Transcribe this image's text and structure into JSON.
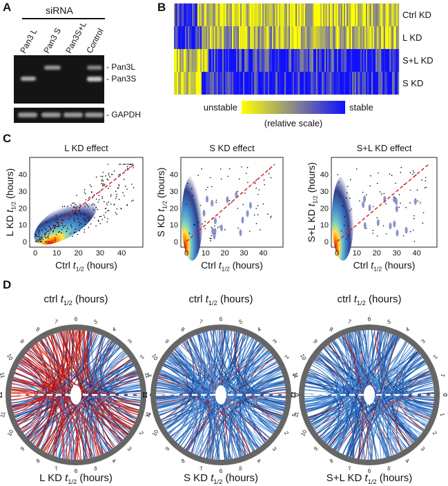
{
  "panel_a": {
    "label": "A",
    "header": "siRNA",
    "lanes": [
      "Pan3 L",
      "Pan3 S",
      "Pan3S+L",
      "Control"
    ],
    "bands": [
      "- Pan3L",
      "- Pan3S",
      "- GAPDH"
    ]
  },
  "panel_b": {
    "label": "B",
    "rows": [
      "Ctrl KD",
      "L KD",
      "S+L KD",
      "S KD"
    ],
    "legend_low": "unstable",
    "legend_high": "stable",
    "legend_note": "(relative scale)"
  },
  "panel_c": {
    "label": "C",
    "ticks": [
      0,
      10,
      20,
      30,
      40
    ],
    "plots": [
      {
        "title": "L KD effect",
        "y_label": {
          "prefix": "L KD ",
          "var": "t",
          "sub": "1/2",
          "suffix": " (hours)"
        },
        "x_label": {
          "prefix": "Ctrl ",
          "var": "t",
          "sub": "1/2",
          "suffix": " (hours)"
        }
      },
      {
        "title": "S KD effect",
        "y_label": {
          "prefix": "S KD ",
          "var": "t",
          "sub": "1/2",
          "suffix": " (hours)"
        },
        "x_label": {
          "prefix": "Ctrl ",
          "var": "t",
          "sub": "1/2",
          "suffix": " (hours)"
        }
      },
      {
        "title": "S+L KD effect",
        "y_label": {
          "prefix": "S+L KD ",
          "var": "t",
          "sub": "1/2",
          "suffix": " (hours)"
        },
        "x_label": {
          "prefix": "Ctrl ",
          "var": "t",
          "sub": "1/2",
          "suffix": " (hours)"
        }
      }
    ]
  },
  "panel_d": {
    "label": "D",
    "ticks": [
      0,
      1,
      2,
      3,
      4,
      5,
      6,
      7,
      8,
      9,
      10,
      11,
      12
    ],
    "circles": [
      {
        "top": {
          "prefix": "ctrl ",
          "var": "t",
          "sub": "1/2",
          "suffix": " (hours)"
        },
        "bottom": {
          "prefix": "L KD ",
          "var": "t",
          "sub": "1/2",
          "suffix": " (hours)"
        }
      },
      {
        "top": {
          "prefix": "ctrl ",
          "var": "t",
          "sub": "1/2",
          "suffix": " (hours)"
        },
        "bottom": {
          "prefix": "S KD ",
          "var": "t",
          "sub": "1/2",
          "suffix": " (hours)"
        }
      },
      {
        "top": {
          "prefix": "ctrl ",
          "var": "t",
          "sub": "1/2",
          "suffix": " (hours)"
        },
        "bottom": {
          "prefix": "S+L KD ",
          "var": "t",
          "sub": "1/2",
          "suffix": " (hours)"
        }
      }
    ]
  }
}
